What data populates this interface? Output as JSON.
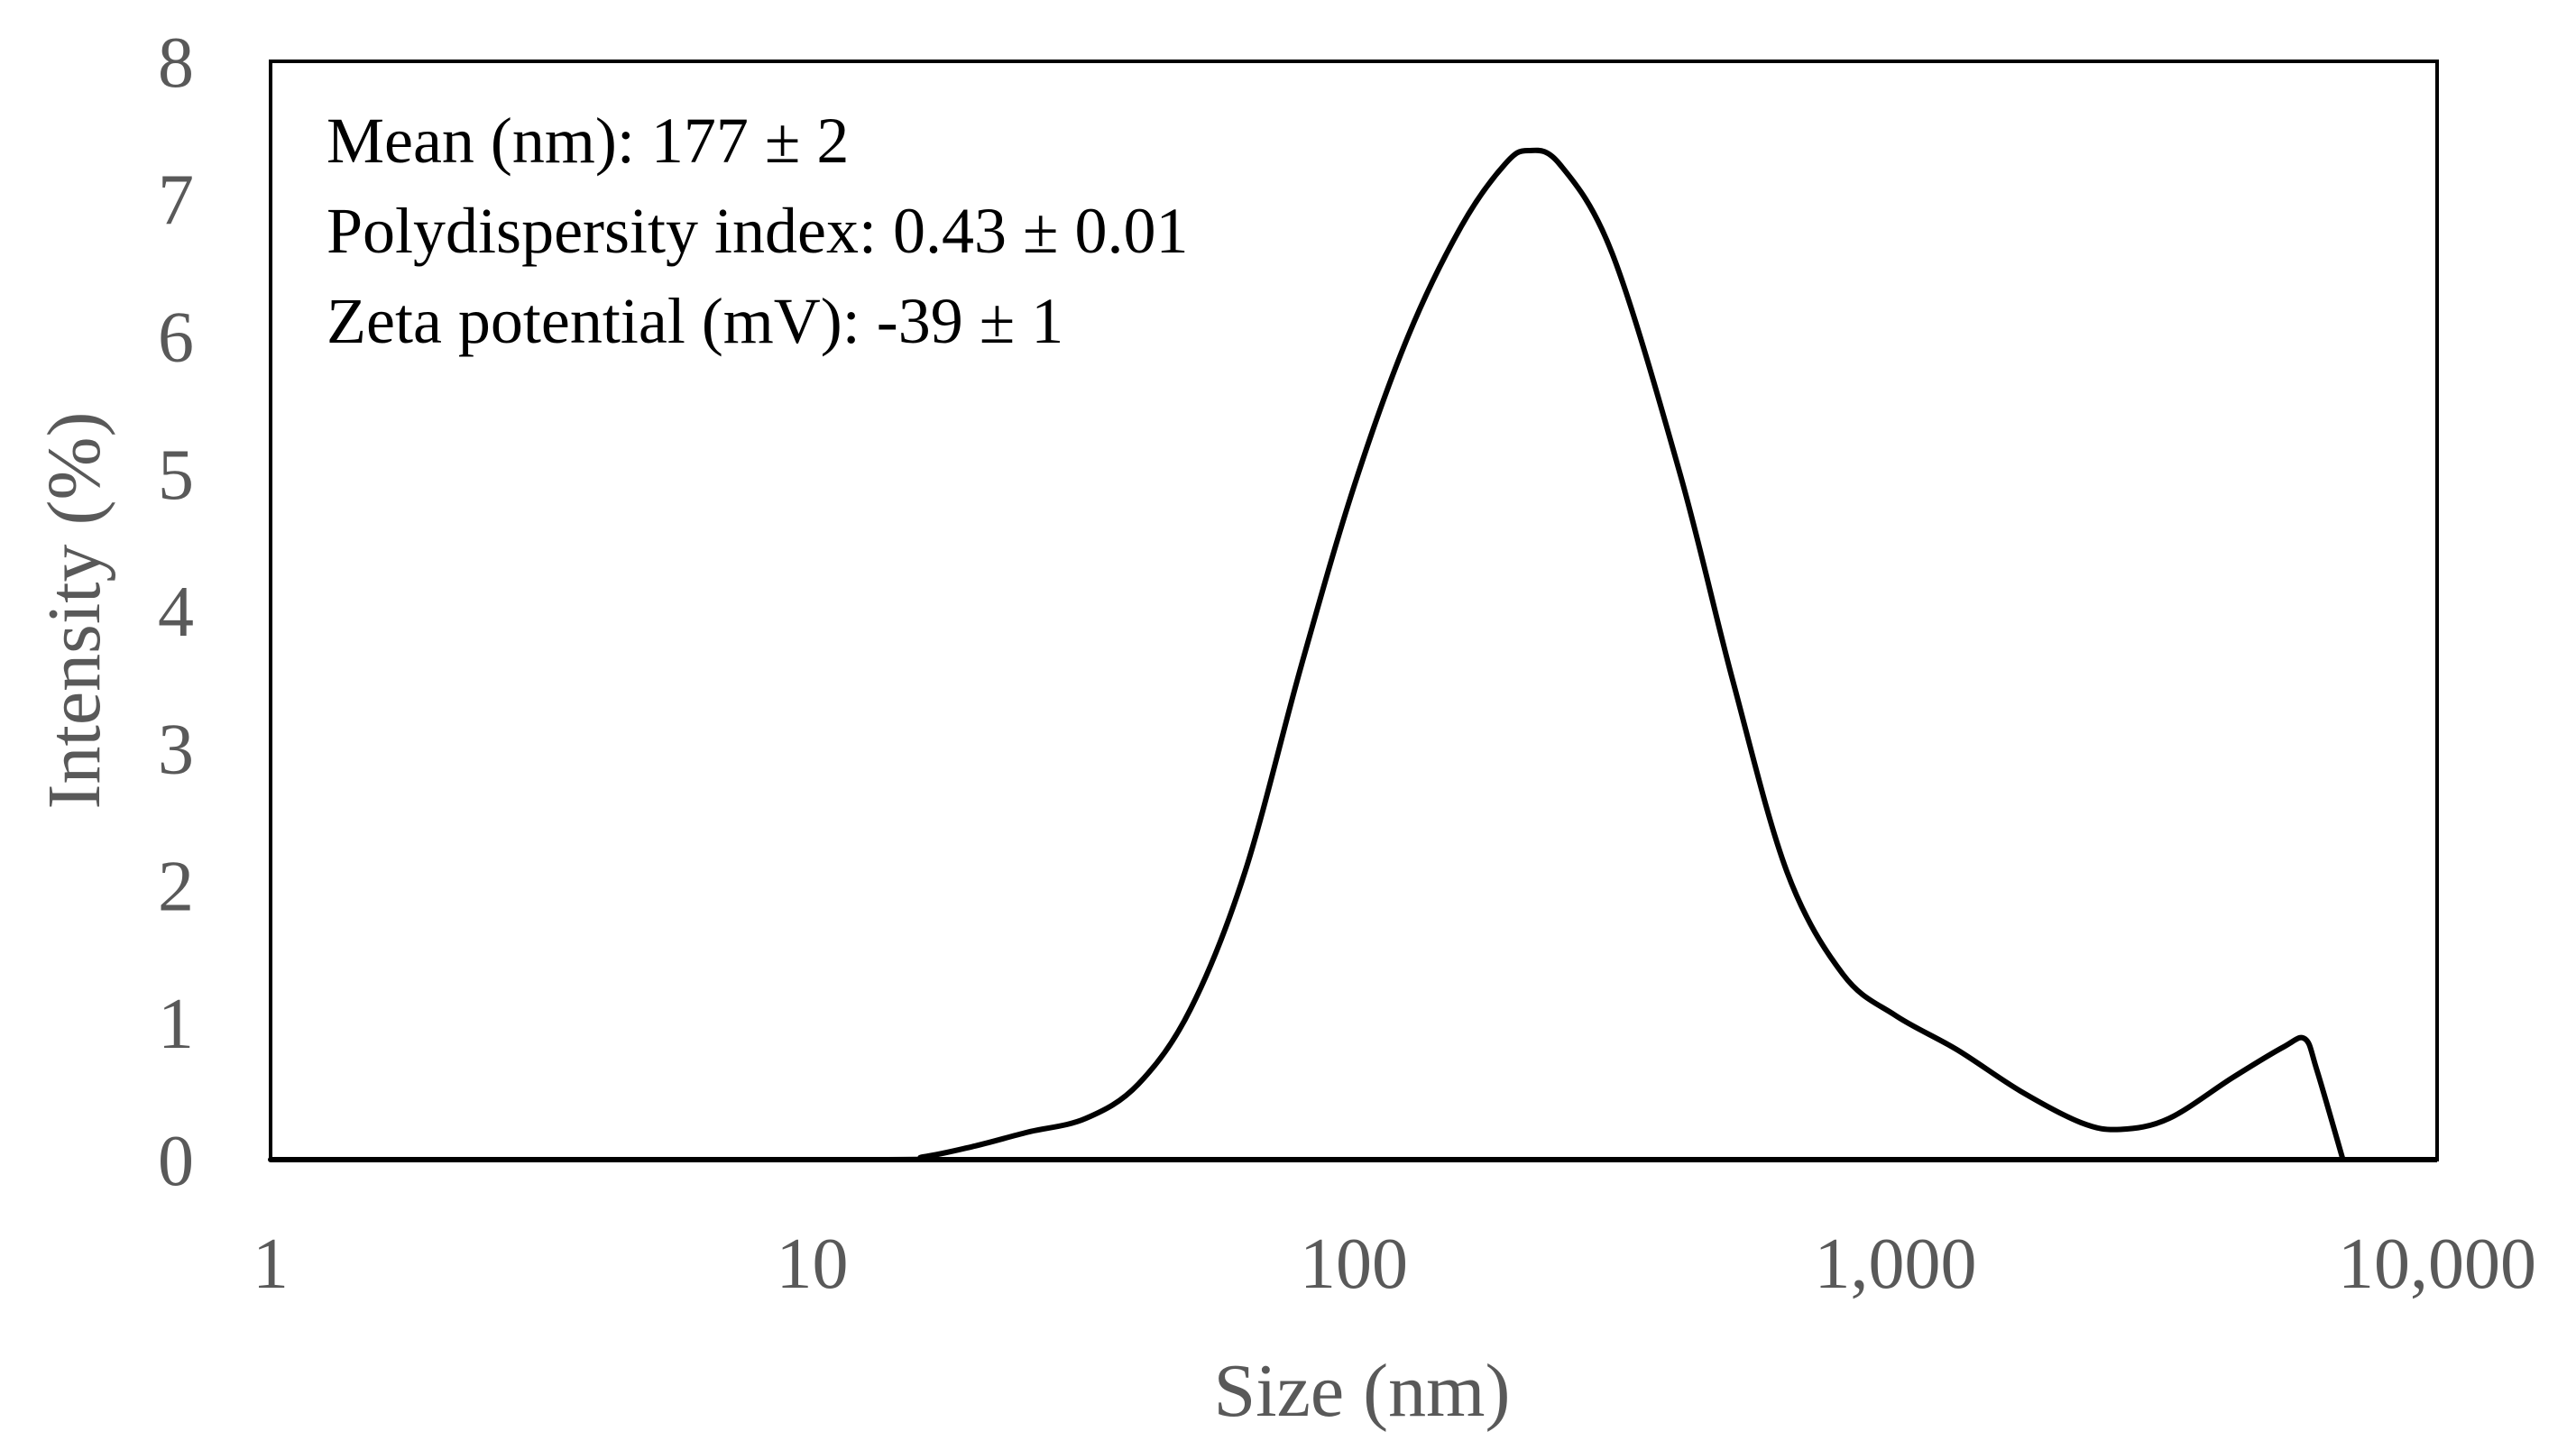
{
  "chart_data": {
    "type": "line",
    "title": "",
    "xlabel": "Size (nm)",
    "ylabel": "Intensity (%)",
    "xscale": "log",
    "xlim": [
      1,
      10000
    ],
    "ylim": [
      0,
      8
    ],
    "x_ticks": [
      {
        "value": 1,
        "label": "1"
      },
      {
        "value": 10,
        "label": "10"
      },
      {
        "value": 100,
        "label": "100"
      },
      {
        "value": 1000,
        "label": "1,000"
      },
      {
        "value": 10000,
        "label": "10,000"
      }
    ],
    "y_ticks": [
      {
        "value": 0,
        "label": "0"
      },
      {
        "value": 1,
        "label": "1"
      },
      {
        "value": 2,
        "label": "2"
      },
      {
        "value": 3,
        "label": "3"
      },
      {
        "value": 4,
        "label": "4"
      },
      {
        "value": 5,
        "label": "5"
      },
      {
        "value": 6,
        "label": "6"
      },
      {
        "value": 7,
        "label": "7"
      },
      {
        "value": 8,
        "label": "8"
      }
    ],
    "grid": false,
    "line_color": "#000000",
    "annotations": [
      "Mean (nm): 177  ± 2",
      "Polydispersity index: 0.43 ± 0.01",
      "Zeta potential (mV): -39 ± 1"
    ],
    "series": [
      {
        "name": "Intensity",
        "points": [
          {
            "x": 1,
            "y": 0
          },
          {
            "x": 13,
            "y": 0
          },
          {
            "x": 16,
            "y": 0.02
          },
          {
            "x": 20,
            "y": 0.1
          },
          {
            "x": 25,
            "y": 0.2
          },
          {
            "x": 32,
            "y": 0.3
          },
          {
            "x": 40,
            "y": 0.55
          },
          {
            "x": 50,
            "y": 1.1
          },
          {
            "x": 63,
            "y": 2.1
          },
          {
            "x": 80,
            "y": 3.6
          },
          {
            "x": 100,
            "y": 4.9
          },
          {
            "x": 126,
            "y": 6.0
          },
          {
            "x": 158,
            "y": 6.8
          },
          {
            "x": 190,
            "y": 7.25
          },
          {
            "x": 210,
            "y": 7.35
          },
          {
            "x": 240,
            "y": 7.25
          },
          {
            "x": 300,
            "y": 6.6
          },
          {
            "x": 400,
            "y": 5.0
          },
          {
            "x": 500,
            "y": 3.5
          },
          {
            "x": 630,
            "y": 2.1
          },
          {
            "x": 800,
            "y": 1.35
          },
          {
            "x": 1000,
            "y": 1.05
          },
          {
            "x": 1300,
            "y": 0.8
          },
          {
            "x": 1700,
            "y": 0.5
          },
          {
            "x": 2200,
            "y": 0.27
          },
          {
            "x": 2600,
            "y": 0.22
          },
          {
            "x": 3200,
            "y": 0.3
          },
          {
            "x": 4200,
            "y": 0.6
          },
          {
            "x": 5200,
            "y": 0.82
          },
          {
            "x": 5700,
            "y": 0.88
          },
          {
            "x": 6000,
            "y": 0.65
          },
          {
            "x": 6700,
            "y": 0
          }
        ]
      }
    ]
  }
}
